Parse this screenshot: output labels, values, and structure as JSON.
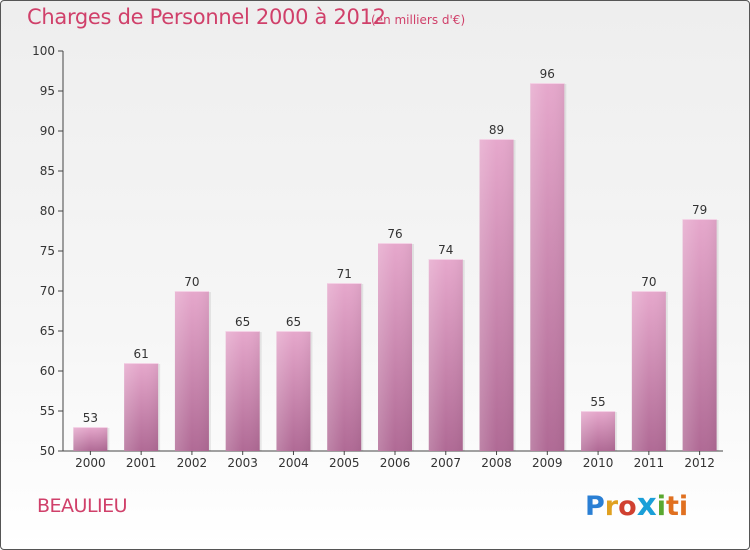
{
  "header": {
    "title": "Charges de Personnel 2000 à 2012",
    "subtitle": "(en milliers d'€)"
  },
  "footer": {
    "commune": "BEAULIEU",
    "logo_letters": [
      "P",
      "r",
      "o",
      "x",
      "i",
      "t",
      "i"
    ]
  },
  "colors": {
    "title": "#d0406a",
    "bar_top": "#e6a8cc",
    "bar_bottom": "#b06a95"
  },
  "chart_data": {
    "type": "bar",
    "title": "Charges de Personnel 2000 à 2012",
    "subtitle": "(en milliers d'€)",
    "categories": [
      "2000",
      "2001",
      "2002",
      "2003",
      "2004",
      "2005",
      "2006",
      "2007",
      "2008",
      "2009",
      "2010",
      "2011",
      "2012"
    ],
    "values": [
      53,
      61,
      70,
      65,
      65,
      71,
      76,
      74,
      89,
      96,
      55,
      70,
      79
    ],
    "data_labels": [
      "53",
      "61",
      "70",
      "65",
      "65",
      "71",
      "76",
      "74",
      "89",
      "96",
      "55",
      "70",
      "79"
    ],
    "y_ticks": [
      "50",
      "55",
      "60",
      "65",
      "70",
      "75",
      "80",
      "85",
      "90",
      "95",
      "100"
    ],
    "ylim": [
      50,
      100
    ],
    "xlabel": "",
    "ylabel": "",
    "grid": false,
    "legend": "none"
  }
}
